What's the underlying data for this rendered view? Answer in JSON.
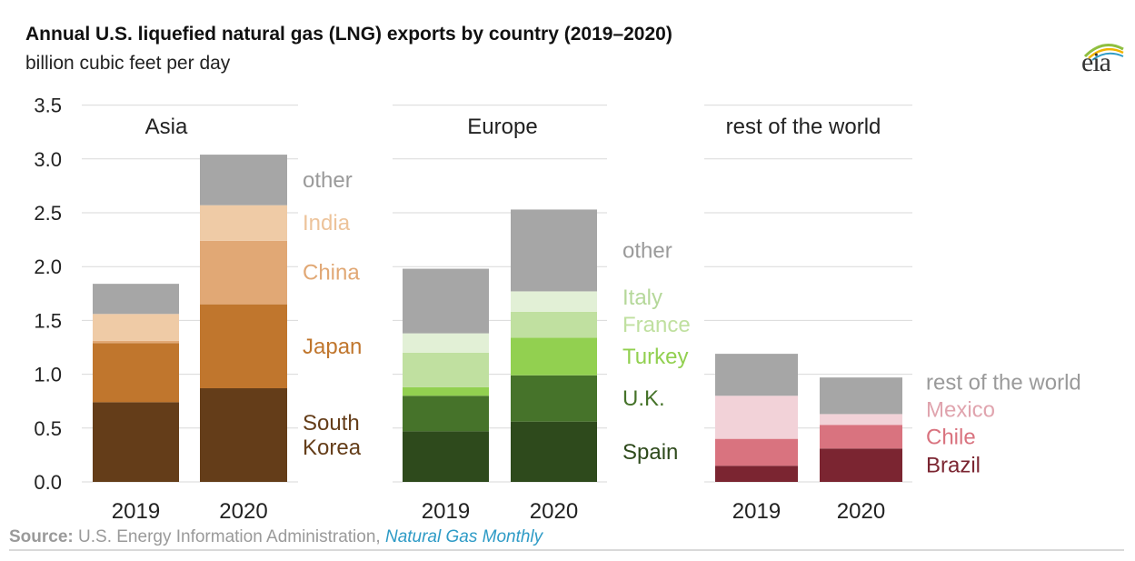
{
  "header": {
    "title": "Annual U.S. liquefied natural gas (LNG) exports by country (2019–2020)",
    "subtitle": "billion cubic feet per day",
    "logo_text": "eia"
  },
  "footer": {
    "source_label": "Source:",
    "source_text": " U.S. Energy Information Administration, ",
    "publication": "Natural Gas Monthly"
  },
  "chart_data": {
    "type": "bar",
    "stacked": true,
    "title": "Annual U.S. liquefied natural gas (LNG) exports by country (2019–2020)",
    "ylabel": "billion cubic feet per day",
    "ylim": [
      0,
      3.5
    ],
    "yticks": [
      "0.0",
      "0.5",
      "1.0",
      "1.5",
      "2.0",
      "2.5",
      "3.0",
      "3.5"
    ],
    "grid": true,
    "panels": [
      {
        "name": "Asia",
        "categories": [
          "2019",
          "2020"
        ],
        "series": [
          {
            "name": "South Korea",
            "label_lines": [
              "South",
              "Korea"
            ],
            "color": "#643d19",
            "values": [
              0.74,
              0.87
            ]
          },
          {
            "name": "Japan",
            "label_lines": [
              "Japan"
            ],
            "color": "#c0762d",
            "values": [
              0.55,
              0.78
            ]
          },
          {
            "name": "China",
            "label_lines": [
              "China"
            ],
            "color": "#e1a875",
            "values": [
              0.02,
              0.59
            ]
          },
          {
            "name": "India",
            "label_lines": [
              "India"
            ],
            "color": "#efcba6",
            "values": [
              0.25,
              0.33
            ]
          },
          {
            "name": "other",
            "label_lines": [
              "other"
            ],
            "color": "#a6a6a6",
            "values": [
              0.28,
              0.47
            ]
          }
        ]
      },
      {
        "name": "Europe",
        "categories": [
          "2019",
          "2020"
        ],
        "series": [
          {
            "name": "Spain",
            "label_lines": [
              "Spain"
            ],
            "color": "#2e4a1c",
            "values": [
              0.47,
              0.56
            ]
          },
          {
            "name": "U.K.",
            "label_lines": [
              "U.K."
            ],
            "color": "#46732a",
            "values": [
              0.33,
              0.43
            ]
          },
          {
            "name": "Turkey",
            "label_lines": [
              "Turkey"
            ],
            "color": "#92d050",
            "values": [
              0.08,
              0.35
            ]
          },
          {
            "name": "France",
            "label_lines": [
              "France"
            ],
            "color": "#c0e0a0",
            "values": [
              0.32,
              0.24
            ]
          },
          {
            "name": "Italy",
            "label_lines": [
              "Italy"
            ],
            "color": "#e2f0d6",
            "values": [
              0.18,
              0.19
            ]
          },
          {
            "name": "other",
            "label_lines": [
              "other"
            ],
            "color": "#a6a6a6",
            "values": [
              0.6,
              0.76
            ]
          }
        ]
      },
      {
        "name": "rest of the world",
        "categories": [
          "2019",
          "2020"
        ],
        "series": [
          {
            "name": "Brazil",
            "label_lines": [
              "Brazil"
            ],
            "color": "#7b2531",
            "values": [
              0.15,
              0.31
            ]
          },
          {
            "name": "Chile",
            "label_lines": [
              "Chile"
            ],
            "color": "#d9737f",
            "values": [
              0.25,
              0.22
            ]
          },
          {
            "name": "Mexico",
            "label_lines": [
              "Mexico"
            ],
            "color": "#f2d2d8",
            "values": [
              0.4,
              0.1
            ]
          },
          {
            "name": "rest of the world",
            "label_lines": [
              "rest of the world"
            ],
            "color": "#a6a6a6",
            "values": [
              0.39,
              0.34
            ]
          }
        ]
      }
    ]
  }
}
